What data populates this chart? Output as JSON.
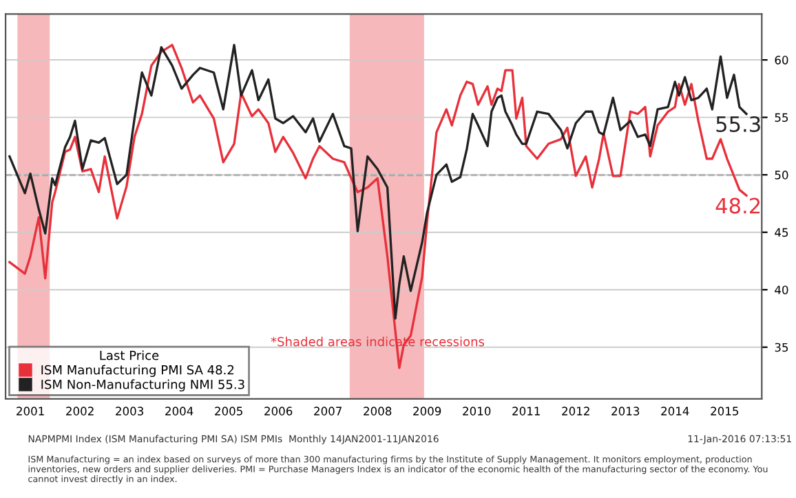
{
  "chart_data": {
    "type": "line",
    "x": [
      2001.08,
      2001.39,
      2001.5,
      2001.67,
      2001.8,
      2001.94,
      2002.0,
      2002.2,
      2002.3,
      2002.4,
      2002.55,
      2002.72,
      2002.88,
      2003.0,
      2003.25,
      2003.44,
      2003.6,
      2003.75,
      2003.94,
      2004.14,
      2004.36,
      2004.55,
      2004.78,
      2004.92,
      2005.2,
      2005.39,
      2005.61,
      2005.75,
      2005.97,
      2006.1,
      2006.3,
      2006.44,
      2006.6,
      2006.8,
      2007.05,
      2007.2,
      2007.33,
      2007.6,
      2007.83,
      2007.97,
      2008.1,
      2008.3,
      2008.5,
      2008.7,
      2008.86,
      2008.94,
      2009.03,
      2009.17,
      2009.4,
      2009.5,
      2009.69,
      2009.89,
      2010.0,
      2010.17,
      2010.3,
      2010.42,
      2010.53,
      2010.72,
      2010.8,
      2010.92,
      2011.0,
      2011.08,
      2011.22,
      2011.3,
      2011.42,
      2011.5,
      2011.72,
      2011.95,
      2012.2,
      2012.33,
      2012.5,
      2012.7,
      2012.83,
      2012.97,
      2013.06,
      2013.25,
      2013.4,
      2013.6,
      2013.75,
      2013.9,
      2014.0,
      2014.15,
      2014.36,
      2014.5,
      2014.58,
      2014.7,
      2014.83,
      2014.97,
      2015.14,
      2015.25,
      2015.42,
      2015.55,
      2015.69,
      2015.8,
      2015.94
    ],
    "xlim": [
      2001.0,
      2016.25
    ],
    "xticks": [
      {
        "value": 2001.5,
        "label": "2001"
      },
      {
        "value": 2002.5,
        "label": "2002"
      },
      {
        "value": 2003.5,
        "label": "2003"
      },
      {
        "value": 2004.5,
        "label": "2004"
      },
      {
        "value": 2005.5,
        "label": "2005"
      },
      {
        "value": 2006.5,
        "label": "2006"
      },
      {
        "value": 2007.5,
        "label": "2007"
      },
      {
        "value": 2008.5,
        "label": "2008"
      },
      {
        "value": 2009.5,
        "label": "2009"
      },
      {
        "value": 2010.5,
        "label": "2010"
      },
      {
        "value": 2011.5,
        "label": "2011"
      },
      {
        "value": 2012.5,
        "label": "2012"
      },
      {
        "value": 2013.5,
        "label": "2013"
      },
      {
        "value": 2014.5,
        "label": "2014"
      },
      {
        "value": 2015.5,
        "label": "2015"
      }
    ],
    "ylim": [
      30.5,
      64
    ],
    "yticks": [
      35,
      40,
      45,
      50,
      55,
      60
    ],
    "series": [
      {
        "name": "ISM Manufacturing PMI SA 48.2",
        "color": "#e8303a",
        "values": [
          42.4,
          41.4,
          42.9,
          46.3,
          41.0,
          47.6,
          48.5,
          52.0,
          52.2,
          53.3,
          50.3,
          50.5,
          48.5,
          51.6,
          46.2,
          49.0,
          53.3,
          55.3,
          59.5,
          60.7,
          61.3,
          59.3,
          56.3,
          56.9,
          54.9,
          51.1,
          52.7,
          57.1,
          55.1,
          55.7,
          54.5,
          52.0,
          53.3,
          51.9,
          49.7,
          51.4,
          52.5,
          51.4,
          51.1,
          49.7,
          48.5,
          48.9,
          49.7,
          42.9,
          36.4,
          33.2,
          35.2,
          36.0,
          41.1,
          45.9,
          53.7,
          55.7,
          54.3,
          56.9,
          58.1,
          57.9,
          56.1,
          57.7,
          56.1,
          57.5,
          57.3,
          59.1,
          59.1,
          54.9,
          56.7,
          52.5,
          51.4,
          52.7,
          53.1,
          54.1,
          49.9,
          51.6,
          48.9,
          51.4,
          53.6,
          49.9,
          49.9,
          55.5,
          55.3,
          55.9,
          51.6,
          54.3,
          55.5,
          55.9,
          57.9,
          56.1,
          57.9,
          54.7,
          51.4,
          51.4,
          53.1,
          51.4,
          49.9,
          48.7,
          48.2
        ]
      },
      {
        "name": "ISM Non-Manufacturing NMI 55.3",
        "color": "#222222",
        "values": [
          51.6,
          48.4,
          50.1,
          47.0,
          44.9,
          49.7,
          49.1,
          52.4,
          53.3,
          54.7,
          50.5,
          53.0,
          52.8,
          53.2,
          49.2,
          50.0,
          54.9,
          58.9,
          56.9,
          61.1,
          59.5,
          57.5,
          58.7,
          59.3,
          58.9,
          55.7,
          61.3,
          56.9,
          59.1,
          56.5,
          58.3,
          54.9,
          54.5,
          55.1,
          53.7,
          54.9,
          52.9,
          55.3,
          52.5,
          52.3,
          45.1,
          51.6,
          50.5,
          48.9,
          37.5,
          40.5,
          42.9,
          39.9,
          44.1,
          46.7,
          50.0,
          50.9,
          49.4,
          49.8,
          52.2,
          55.3,
          54.3,
          52.5,
          55.5,
          56.7,
          56.9,
          55.5,
          54.3,
          53.5,
          52.7,
          52.7,
          55.5,
          55.3,
          53.9,
          52.3,
          54.5,
          55.5,
          55.5,
          53.7,
          53.5,
          56.7,
          53.9,
          54.7,
          53.3,
          53.5,
          52.5,
          55.7,
          55.9,
          58.1,
          56.9,
          58.5,
          56.5,
          56.7,
          57.5,
          55.7,
          60.3,
          56.7,
          58.7,
          55.9,
          55.3
        ]
      }
    ],
    "ref_lines": [
      {
        "axis": "y",
        "value": 50,
        "color": "#333333",
        "line_style": "dashed"
      }
    ],
    "bands": [
      {
        "axis": "x",
        "from": 2001.24,
        "to": 2001.89,
        "color": "#f4a6aa"
      },
      {
        "axis": "x",
        "from": 2007.94,
        "to": 2009.44,
        "color": "#f4a6aa"
      }
    ],
    "legend": "bottom left",
    "legend_title": "Last Price",
    "grid": "y",
    "line_style": "solid",
    "annotations": [
      {
        "text": "55.3",
        "x": 2015.94,
        "y": 55.3
      },
      {
        "text": "48.2",
        "x": 2015.94,
        "y": 48.2
      },
      "*Shaded areas indicate recessions",
      "NAPMPMI Index (ISM Manufacturing PMI SA) ISM PMIs  Monthly 14JAN2001-11JAN2016",
      "11-Jan-2016 07:13:51",
      "ISM Manufacturing = an index based on surveys of more than 300 manufacturing firms by the Institute of Supply Management. It monitors employment, production inventories, new orders and supplier deliveries. PMI = Purchase Managers Index is an indicator of the economic health of the manufacturing sector of the economy. You cannot invest directly in an index."
    ]
  }
}
